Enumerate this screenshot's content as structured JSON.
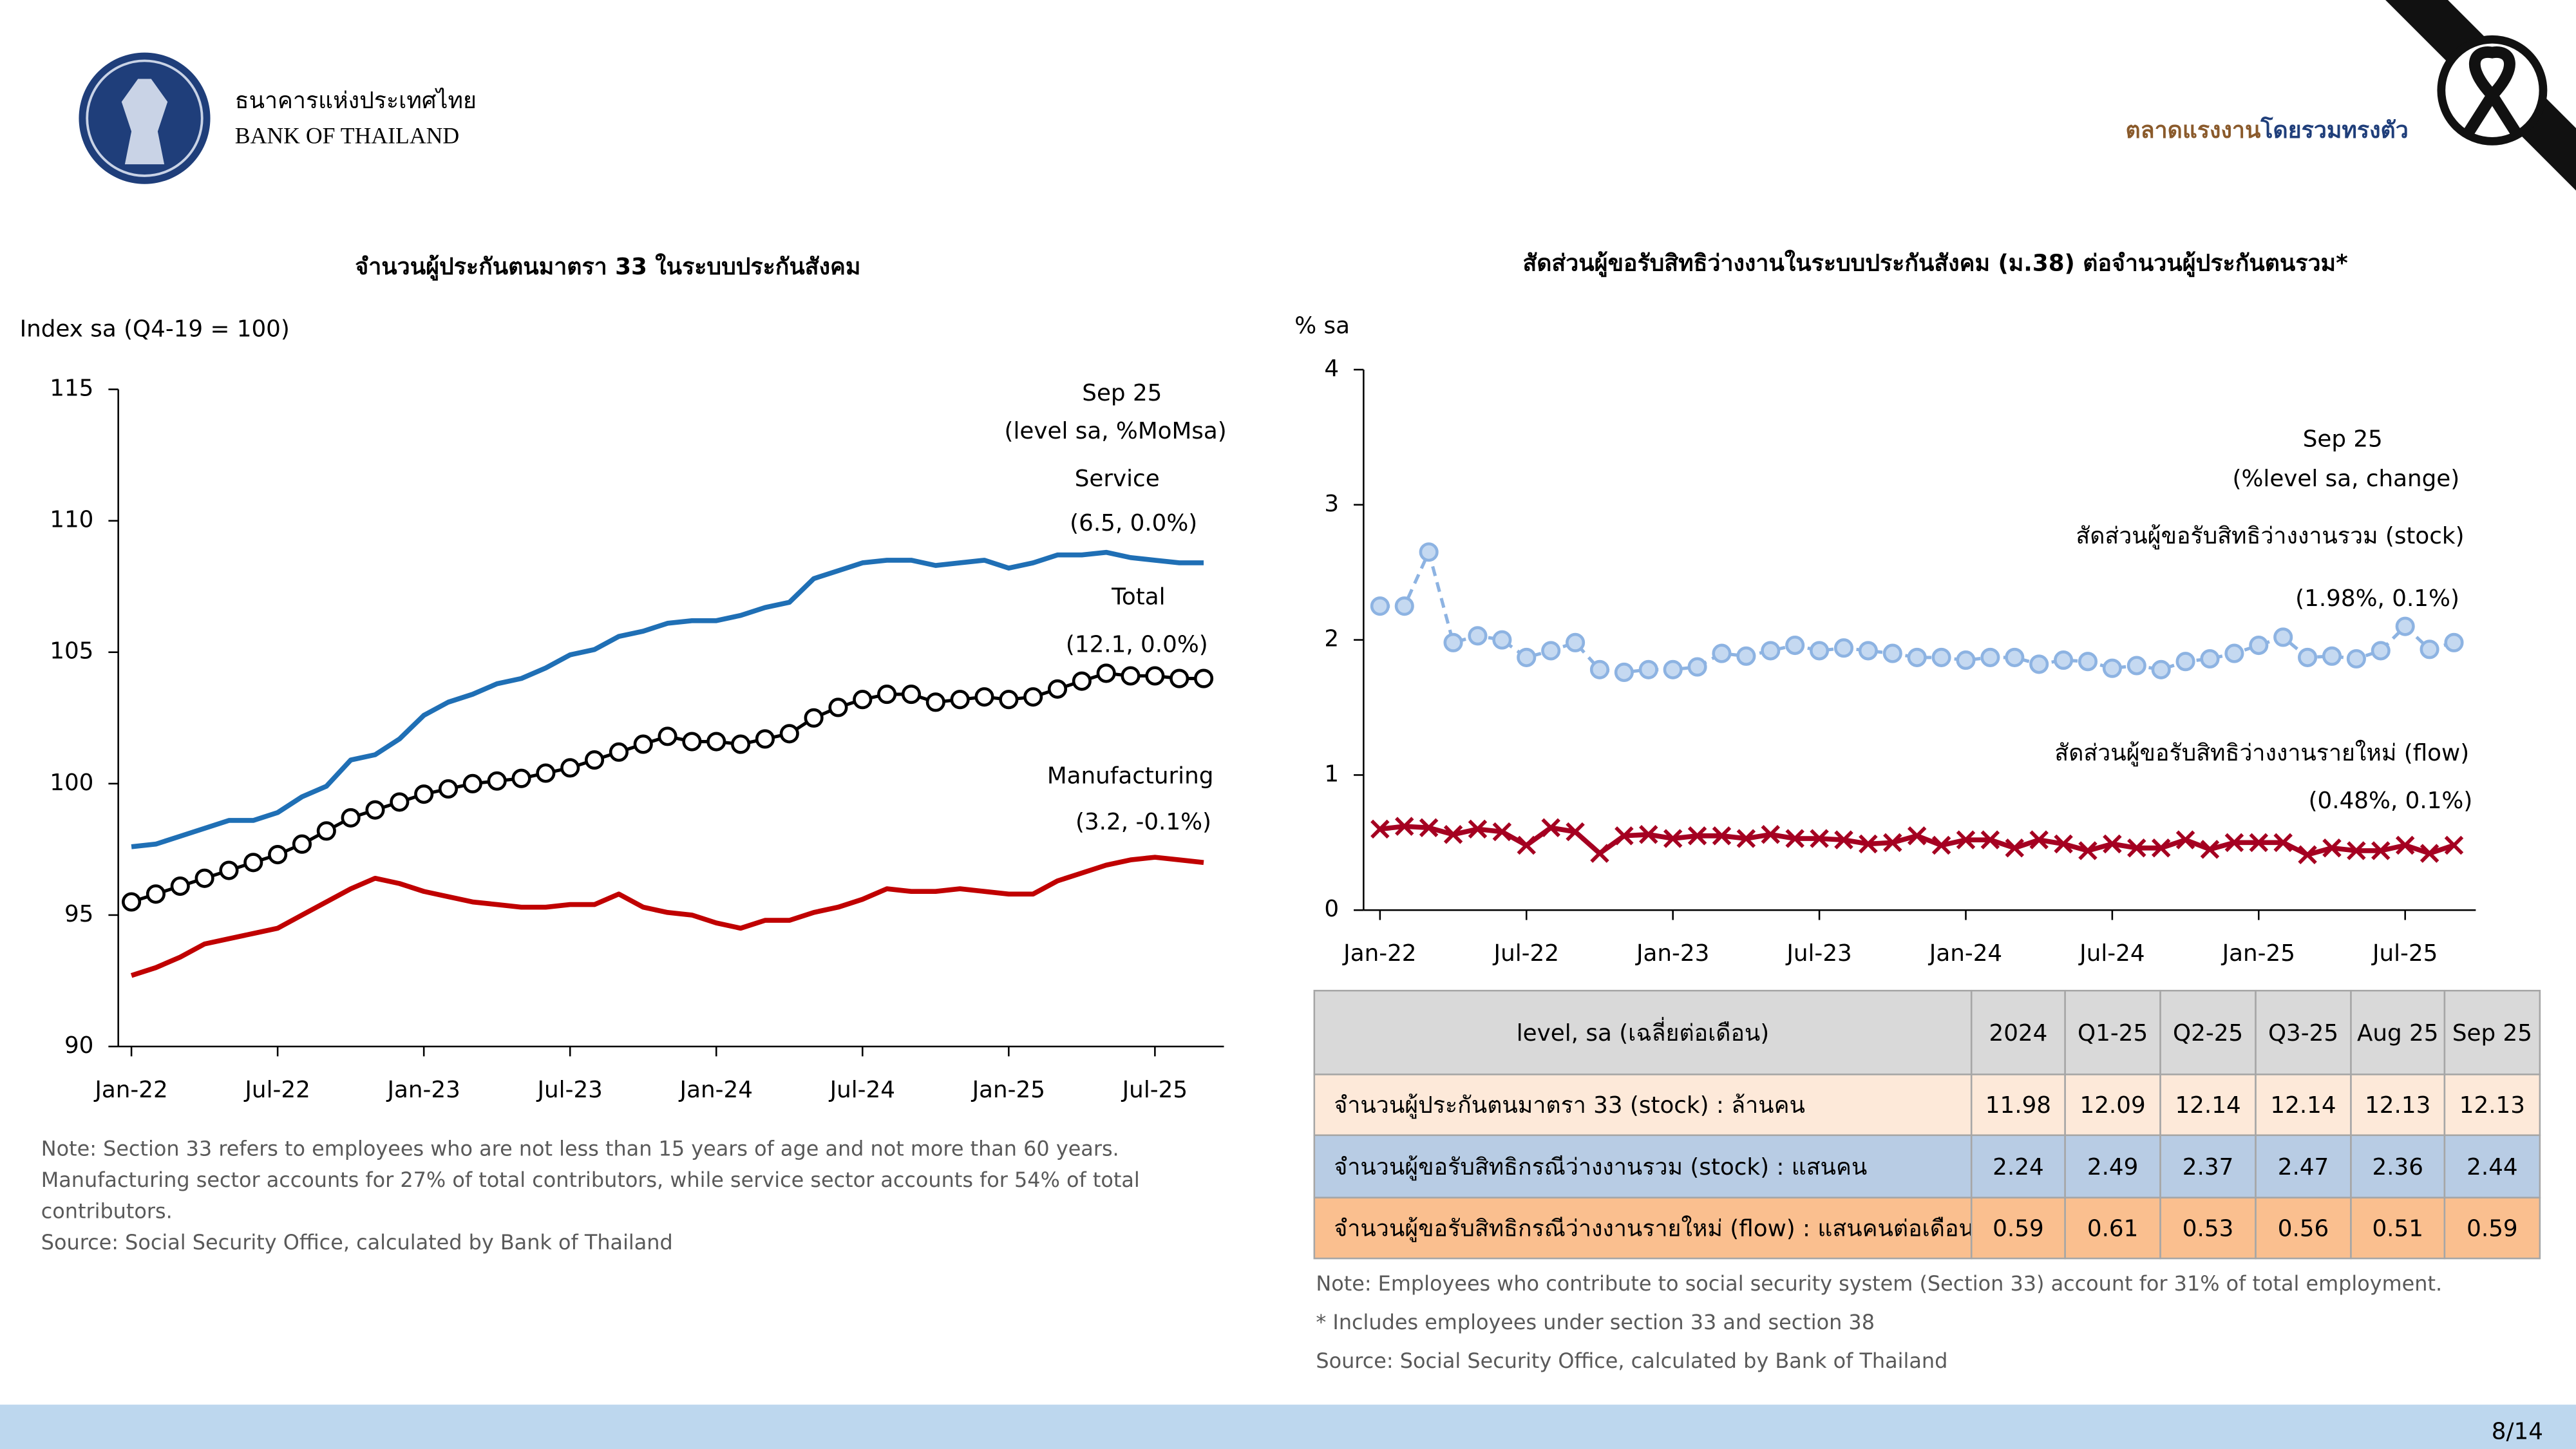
{
  "header": {
    "bank_name_th": "ธนาคารแห่งประเทศไทย",
    "bank_name_en": "BANK OF THAILAND",
    "title_part1": "ตลาดแรงงาน",
    "title_part2": "โดยรวมทรงตัว",
    "page": "8/14"
  },
  "chart_data": [
    {
      "type": "line",
      "title": "จำนวนผู้ประกันตนมาตรา 33 ในระบบประกันสังคม",
      "y_label": "Index sa (Q4-19 = 100)",
      "annotations": [
        "Sep 25",
        "(level sa, %MoMsa)"
      ],
      "categories": [
        "Jan-22",
        null,
        null,
        null,
        null,
        null,
        "Jul-22",
        null,
        null,
        null,
        null,
        null,
        "Jan-23",
        null,
        null,
        null,
        null,
        null,
        "Jul-23",
        null,
        null,
        null,
        null,
        null,
        "Jan-24",
        null,
        null,
        null,
        null,
        null,
        "Jul-24",
        null,
        null,
        null,
        null,
        null,
        "Jan-25",
        null,
        null,
        null,
        null,
        null,
        "Jul-25",
        null,
        null
      ],
      "ylim": [
        90,
        115
      ],
      "yticks": [
        90,
        95,
        100,
        105,
        110,
        115
      ],
      "series": [
        {
          "name": "Service",
          "annotation": "(6.5, 0.0%)",
          "color": "#1f6fb5",
          "marker": "none",
          "values": [
            97.6,
            97.7,
            98.0,
            98.3,
            98.6,
            98.6,
            98.9,
            99.5,
            99.9,
            100.9,
            101.1,
            101.7,
            102.6,
            103.1,
            103.4,
            103.8,
            104.0,
            104.4,
            104.9,
            105.1,
            105.6,
            105.8,
            106.1,
            106.2,
            106.2,
            106.4,
            106.7,
            106.9,
            107.8,
            108.1,
            108.4,
            108.5,
            108.5,
            108.3,
            108.4,
            108.5,
            108.2,
            108.4,
            108.7,
            108.7,
            108.8,
            108.6,
            108.5,
            108.4,
            108.4
          ]
        },
        {
          "name": "Total",
          "annotation": "(12.1, 0.0%)",
          "color": "#000000",
          "marker": "circle",
          "values": [
            95.5,
            95.8,
            96.1,
            96.4,
            96.7,
            97.0,
            97.3,
            97.7,
            98.2,
            98.7,
            99.0,
            99.3,
            99.6,
            99.8,
            100.0,
            100.1,
            100.2,
            100.4,
            100.6,
            100.9,
            101.2,
            101.5,
            101.8,
            101.6,
            101.6,
            101.5,
            101.7,
            101.9,
            102.5,
            102.9,
            103.2,
            103.4,
            103.4,
            103.1,
            103.2,
            103.3,
            103.2,
            103.3,
            103.6,
            103.9,
            104.2,
            104.1,
            104.1,
            104.0,
            104.0
          ]
        },
        {
          "name": "Manufacturing",
          "annotation": "(3.2, -0.1%)",
          "color": "#c00000",
          "marker": "none",
          "values": [
            92.7,
            93.0,
            93.4,
            93.9,
            94.1,
            94.3,
            94.5,
            95.0,
            95.5,
            96.0,
            96.4,
            96.2,
            95.9,
            95.7,
            95.5,
            95.4,
            95.3,
            95.3,
            95.4,
            95.4,
            95.8,
            95.3,
            95.1,
            95.0,
            94.7,
            94.5,
            94.8,
            94.8,
            95.1,
            95.3,
            95.6,
            96.0,
            95.9,
            95.9,
            96.0,
            95.9,
            95.8,
            95.8,
            96.3,
            96.6,
            96.9,
            97.1,
            97.2,
            97.1,
            97.0
          ]
        }
      ]
    },
    {
      "type": "line",
      "title": "สัดส่วนผู้ขอรับสิทธิว่างงานในระบบประกันสังคม (ม.38) ต่อจำนวนผู้ประกันตนรวม*",
      "y_label": "% sa",
      "annotations": [
        "Sep 25",
        "(%level sa, change)"
      ],
      "categories": [
        "Jan-22",
        null,
        null,
        null,
        null,
        null,
        "Jul-22",
        null,
        null,
        null,
        null,
        null,
        "Jan-23",
        null,
        null,
        null,
        null,
        null,
        "Jul-23",
        null,
        null,
        null,
        null,
        null,
        "Jan-24",
        null,
        null,
        null,
        null,
        null,
        "Jul-24",
        null,
        null,
        null,
        null,
        null,
        "Jan-25",
        null,
        null,
        null,
        null,
        null,
        "Jul-25",
        null,
        null
      ],
      "ylim": [
        0,
        4
      ],
      "yticks": [
        0,
        1,
        2,
        3,
        4
      ],
      "series": [
        {
          "name": "สัดส่วนผู้ขอรับสิทธิว่างงานรวม (stock)",
          "annotation": "(1.98%, 0.1%)",
          "color": "#8db3e2",
          "marker": "circle",
          "dashed": true,
          "values": [
            2.25,
            2.25,
            2.65,
            1.98,
            2.03,
            2.0,
            1.87,
            1.92,
            1.98,
            1.78,
            1.76,
            1.78,
            1.78,
            1.8,
            1.9,
            1.88,
            1.92,
            1.96,
            1.92,
            1.94,
            1.92,
            1.9,
            1.87,
            1.87,
            1.85,
            1.87,
            1.87,
            1.82,
            1.85,
            1.84,
            1.79,
            1.81,
            1.78,
            1.84,
            1.86,
            1.9,
            1.96,
            2.02,
            1.87,
            1.88,
            1.86,
            1.92,
            2.1,
            1.93,
            1.98
          ]
        },
        {
          "name": "สัดส่วนผู้ขอรับสิทธิว่างงานรายใหม่ (flow)",
          "annotation": "(0.48%, 0.1%)",
          "color": "#a50021",
          "marker": "x",
          "values": [
            0.6,
            0.62,
            0.61,
            0.56,
            0.6,
            0.58,
            0.48,
            0.61,
            0.58,
            0.42,
            0.55,
            0.56,
            0.53,
            0.55,
            0.55,
            0.53,
            0.56,
            0.53,
            0.53,
            0.52,
            0.49,
            0.5,
            0.55,
            0.48,
            0.52,
            0.52,
            0.46,
            0.52,
            0.49,
            0.44,
            0.49,
            0.46,
            0.46,
            0.52,
            0.45,
            0.5,
            0.5,
            0.5,
            0.41,
            0.46,
            0.44,
            0.44,
            0.48,
            0.42,
            0.48
          ]
        }
      ]
    }
  ],
  "notes_left": [
    "Note: Section 33 refers to employees who are not less than 15 years of age and not more than 60 years.",
    "Manufacturing sector accounts for 27% of total contributors, while service sector accounts for 54% of total",
    "contributors.",
    "Source: Social Security Office, calculated by Bank of Thailand"
  ],
  "table": {
    "header": [
      "level, sa (เฉลี่ยต่อเดือน)",
      "2024",
      "Q1-25",
      "Q2-25",
      "Q3-25",
      "Aug 25",
      "Sep 25"
    ],
    "rows": [
      [
        "จำนวนผู้ประกันตนมาตรา 33 (stock) : ล้านคน",
        11.98,
        12.09,
        12.14,
        12.14,
        12.13,
        12.13
      ],
      [
        "จำนวนผู้ขอรับสิทธิกรณีว่างงานรวม (stock) : แสนคน",
        2.24,
        2.49,
        2.37,
        2.47,
        2.36,
        2.44
      ],
      [
        "จำนวนผู้ขอรับสิทธิกรณีว่างงานรายใหม่ (flow) : แสนคนต่อเดือน",
        0.59,
        0.61,
        0.53,
        0.56,
        0.51,
        0.59
      ]
    ]
  },
  "notes_right": [
    "Note: Employees who contribute to social security system (Section 33) account for 31% of total employment.",
    "* Includes employees under section 33 and section 38",
    "Source: Social Security Office, calculated by Bank of Thailand"
  ]
}
